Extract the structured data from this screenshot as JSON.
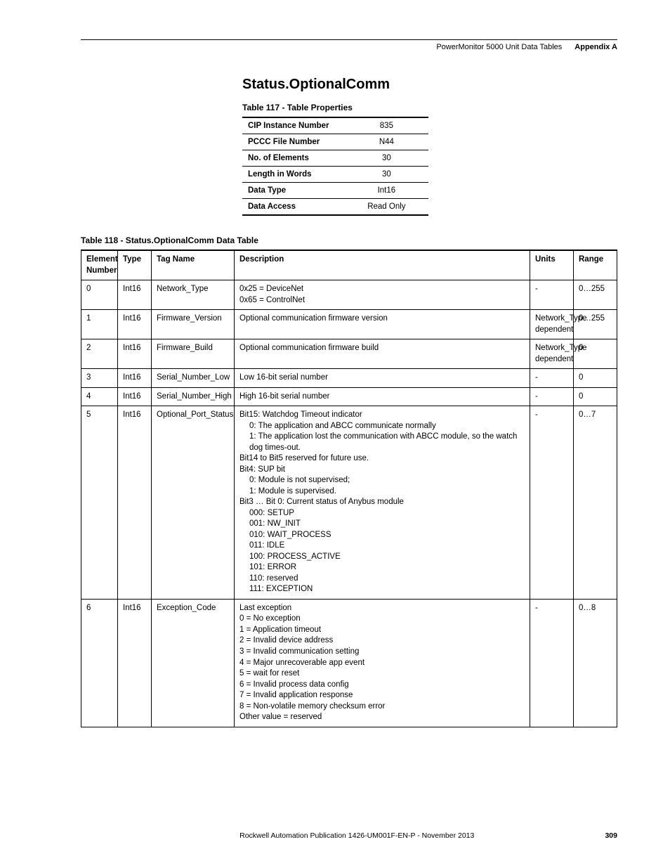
{
  "header": {
    "doc_title": "PowerMonitor 5000 Unit Data Tables",
    "appendix": "Appendix A"
  },
  "section_title": "Status.OptionalComm",
  "table117": {
    "caption": "Table 117 - Table Properties",
    "rows": [
      {
        "label": "CIP Instance Number",
        "value": "835"
      },
      {
        "label": "PCCC File Number",
        "value": "N44"
      },
      {
        "label": "No. of Elements",
        "value": "30"
      },
      {
        "label": "Length in Words",
        "value": "30"
      },
      {
        "label": "Data Type",
        "value": "Int16"
      },
      {
        "label": "Data Access",
        "value": "Read Only"
      }
    ]
  },
  "table118": {
    "caption": "Table 118 - Status.OptionalComm Data Table",
    "headers": {
      "element": "Element Number",
      "type": "Type",
      "tag": "Tag Name",
      "desc": "Description",
      "units": "Units",
      "range": "Range"
    },
    "rows": [
      {
        "element": "0",
        "type": "Int16",
        "tag": "Network_Type",
        "desc_lines": [
          "0x25 = DeviceNet",
          "0x65 = ControlNet"
        ],
        "units": "-",
        "range": "0…255"
      },
      {
        "element": "1",
        "type": "Int16",
        "tag": "Firmware_Version",
        "desc_lines": [
          "Optional communication firmware version"
        ],
        "units": "Network_Type dependent",
        "range": "0…255"
      },
      {
        "element": "2",
        "type": "Int16",
        "tag": "Firmware_Build",
        "desc_lines": [
          "Optional communication firmware build"
        ],
        "units": "Network_Type dependent",
        "range": "0"
      },
      {
        "element": "3",
        "type": "Int16",
        "tag": "Serial_Number_Low",
        "desc_lines": [
          "Low 16-bit serial number"
        ],
        "units": "-",
        "range": "0"
      },
      {
        "element": "4",
        "type": "Int16",
        "tag": "Serial_Number_High",
        "desc_lines": [
          "High 16-bit serial number"
        ],
        "units": "-",
        "range": "0"
      },
      {
        "element": "5",
        "type": "Int16",
        "tag": "Optional_Port_Status",
        "desc_lines": [
          "Bit15: Watchdog Timeout indicator",
          "   0: The application and ABCC communicate normally",
          "   1: The application lost the communication with ABCC module, so the watch dog times-out.",
          "Bit14 to Bit5 reserved for future use.",
          "Bit4:  SUP bit",
          "   0: Module is not supervised;",
          "   1: Module is supervised.",
          "Bit3 … Bit 0: Current status of Anybus module",
          "   000: SETUP",
          "   001: NW_INIT",
          "   010: WAIT_PROCESS",
          "   011: IDLE",
          "   100: PROCESS_ACTIVE",
          "   101: ERROR",
          "   110: reserved",
          "   111: EXCEPTION"
        ],
        "units": "-",
        "range": "0…7"
      },
      {
        "element": "6",
        "type": "Int16",
        "tag": "Exception_Code",
        "desc_lines": [
          "Last exception",
          "0 = No exception",
          "1 = Application timeout",
          "2 = Invalid device address",
          "3 = Invalid communication setting",
          "4 = Major unrecoverable app event",
          "5 = wait for reset",
          "6 = Invalid process data config",
          "7 = Invalid application response",
          "8 = Non-volatile memory checksum error",
          "Other value = reserved"
        ],
        "units": "-",
        "range": "0…8"
      }
    ]
  },
  "footer": {
    "publication": "Rockwell Automation Publication 1426-UM001F-EN-P - November 2013",
    "page": "309"
  }
}
